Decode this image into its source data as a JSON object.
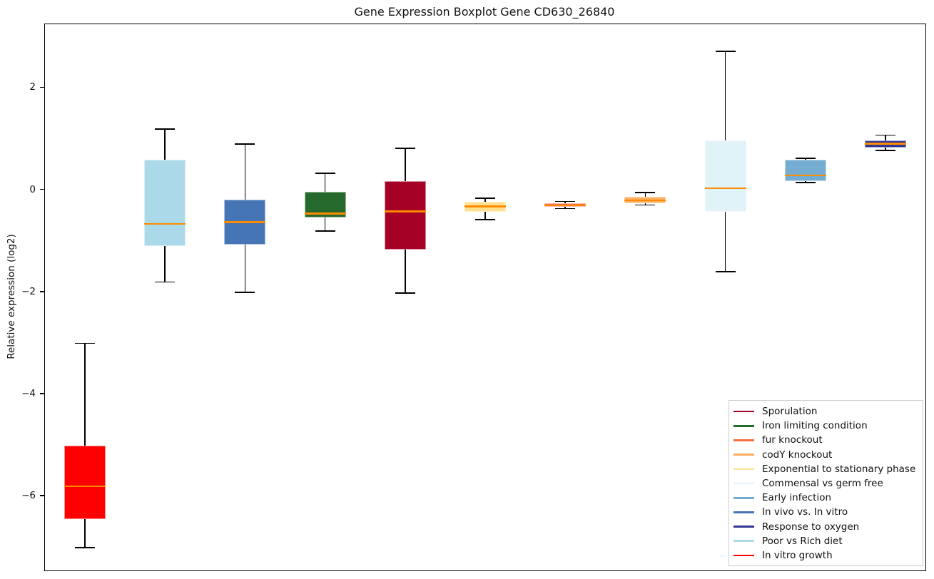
{
  "title": "Gene Expression Boxplot Gene CD630_26840",
  "y_axis": {
    "label": "Relative expression (log2)",
    "ticks": [
      {
        "value": 2,
        "label": "2"
      },
      {
        "value": 0,
        "label": "0"
      },
      {
        "value": -2,
        "label": "−2"
      },
      {
        "value": -4,
        "label": "−4"
      },
      {
        "value": -6,
        "label": "−6"
      }
    ],
    "ylim": [
      -7.45,
      3.25
    ]
  },
  "chart_data": {
    "type": "boxplot",
    "title": "Gene Expression Boxplot Gene CD630_26840",
    "xlabel": "",
    "ylabel": "Relative expression (log2)",
    "ylim": [
      -7.45,
      3.25
    ],
    "grid": false,
    "legend_position": "lower right",
    "median_color": "#FF8C00",
    "whisker_color": "#000000",
    "series": [
      {
        "name": "In vitro growth",
        "color": "#FF0000",
        "whisker_low": -7.0,
        "q1": -6.45,
        "median": -5.8,
        "q3": -5.0,
        "whisker_high": -3.0
      },
      {
        "name": "Poor vs Rich diet",
        "color": "#ABD9E9",
        "whisker_low": -1.8,
        "q1": -1.1,
        "median": -0.66,
        "q3": 0.6,
        "whisker_high": 1.2
      },
      {
        "name": "In vivo vs. In vitro",
        "color": "#4575B4",
        "whisker_low": -2.0,
        "q1": -1.06,
        "median": -0.63,
        "q3": -0.19,
        "whisker_high": 0.9
      },
      {
        "name": "Iron limiting condition",
        "color": "#26692C",
        "whisker_low": -0.8,
        "q1": -0.53,
        "median": -0.46,
        "q3": -0.03,
        "whisker_high": 0.33
      },
      {
        "name": "Sporulation",
        "color": "#A50026",
        "whisker_low": -2.02,
        "q1": -1.17,
        "median": -0.42,
        "q3": 0.17,
        "whisker_high": 0.82
      },
      {
        "name": "Exponential to stationary phase",
        "color": "#FEE090",
        "whisker_low": -0.58,
        "q1": -0.42,
        "median": -0.32,
        "q3": -0.23,
        "whisker_high": -0.16
      },
      {
        "name": "fur knockout",
        "color": "#F46D43",
        "whisker_low": -0.36,
        "q1": -0.33,
        "median": -0.3,
        "q3": -0.26,
        "whisker_high": -0.22
      },
      {
        "name": "codY knockout",
        "color": "#FDAE61",
        "whisker_low": -0.29,
        "q1": -0.25,
        "median": -0.2,
        "q3": -0.13,
        "whisker_high": -0.05
      },
      {
        "name": "Commensal vs germ free",
        "color": "#E0F3F8",
        "whisker_low": -1.6,
        "q1": -0.42,
        "median": 0.04,
        "q3": 0.97,
        "whisker_high": 2.72
      },
      {
        "name": "Early infection",
        "color": "#74ADD1",
        "whisker_low": 0.15,
        "q1": 0.17,
        "median": 0.29,
        "q3": 0.6,
        "whisker_high": 0.62
      },
      {
        "name": "Response to oxygen",
        "color": "#313695",
        "whisker_low": 0.78,
        "q1": 0.84,
        "median": 0.91,
        "q3": 0.97,
        "whisker_high": 1.08
      }
    ]
  },
  "legend": {
    "entries": [
      {
        "label": "Sporulation",
        "color": "#A50026"
      },
      {
        "label": "Iron limiting condition",
        "color": "#26692C"
      },
      {
        "label": "fur knockout",
        "color": "#F46D43"
      },
      {
        "label": "codY knockout",
        "color": "#FDAE61"
      },
      {
        "label": "Exponential to stationary phase",
        "color": "#FEE090"
      },
      {
        "label": "Commensal vs germ free",
        "color": "#E0F3F8"
      },
      {
        "label": "Early infection",
        "color": "#74ADD1"
      },
      {
        "label": "In vivo vs. In vitro",
        "color": "#4575B4"
      },
      {
        "label": "Response to oxygen",
        "color": "#313695"
      },
      {
        "label": "Poor vs Rich diet",
        "color": "#ABD9E9"
      },
      {
        "label": "In vitro growth",
        "color": "#FF0000"
      }
    ]
  }
}
